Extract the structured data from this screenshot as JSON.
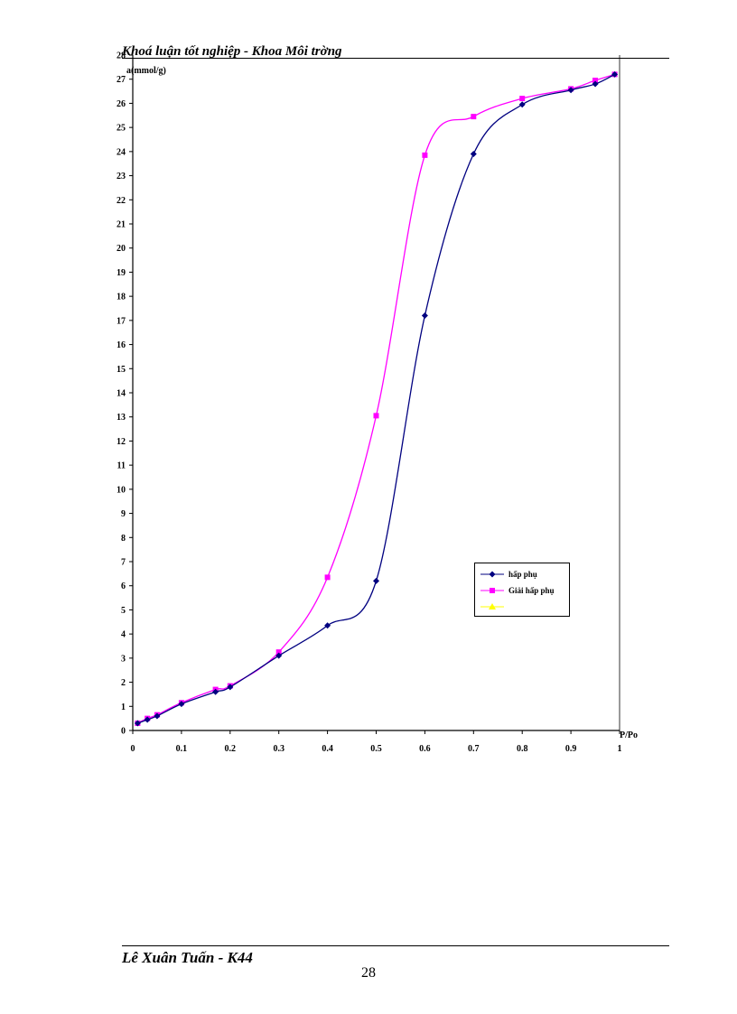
{
  "header": {
    "title": "Khoá luận tốt nghiệp - Khoa Môi trờng"
  },
  "footer": {
    "author": "Lê Xuân Tuấn - K44",
    "page_number": "28"
  },
  "chart_data": {
    "type": "line",
    "title": "",
    "ylabel": "a(mmol/g)",
    "xlabel": "P/Po",
    "xlim": [
      0,
      1
    ],
    "ylim": [
      0,
      28
    ],
    "x_ticks": [
      "0",
      "0.1",
      "0.2",
      "0.3",
      "0.4",
      "0.5",
      "0.6",
      "0.7",
      "0.8",
      "0.9",
      "1"
    ],
    "y_ticks": [
      "0",
      "1",
      "2",
      "3",
      "4",
      "5",
      "6",
      "7",
      "8",
      "9",
      "10",
      "11",
      "12",
      "13",
      "14",
      "15",
      "16",
      "17",
      "18",
      "19",
      "20",
      "21",
      "22",
      "23",
      "24",
      "25",
      "26",
      "27",
      "28"
    ],
    "grid": false,
    "legend_position": "right-middle",
    "series": [
      {
        "name": "hấp phụ",
        "color": "#000080",
        "marker": "diamond",
        "points": [
          [
            0.01,
            0.3
          ],
          [
            0.03,
            0.45
          ],
          [
            0.05,
            0.6
          ],
          [
            0.1,
            1.1
          ],
          [
            0.17,
            1.6
          ],
          [
            0.2,
            1.8
          ],
          [
            0.3,
            3.1
          ],
          [
            0.4,
            4.35
          ],
          [
            0.5,
            6.2
          ],
          [
            0.6,
            17.2
          ],
          [
            0.7,
            23.9
          ],
          [
            0.8,
            25.95
          ],
          [
            0.9,
            26.55
          ],
          [
            0.95,
            26.8
          ],
          [
            0.99,
            27.2
          ]
        ]
      },
      {
        "name": "Giải hấp phụ",
        "color": "#FF00FF",
        "marker": "square",
        "points": [
          [
            0.01,
            0.3
          ],
          [
            0.03,
            0.5
          ],
          [
            0.05,
            0.65
          ],
          [
            0.1,
            1.15
          ],
          [
            0.17,
            1.7
          ],
          [
            0.2,
            1.85
          ],
          [
            0.3,
            3.25
          ],
          [
            0.4,
            6.35
          ],
          [
            0.5,
            13.05
          ],
          [
            0.6,
            23.85
          ],
          [
            0.7,
            25.45
          ],
          [
            0.8,
            26.2
          ],
          [
            0.9,
            26.6
          ],
          [
            0.95,
            26.95
          ],
          [
            0.99,
            27.2
          ]
        ]
      },
      {
        "name": "",
        "color": "#FFFF00",
        "marker": "triangle",
        "points": []
      }
    ]
  }
}
